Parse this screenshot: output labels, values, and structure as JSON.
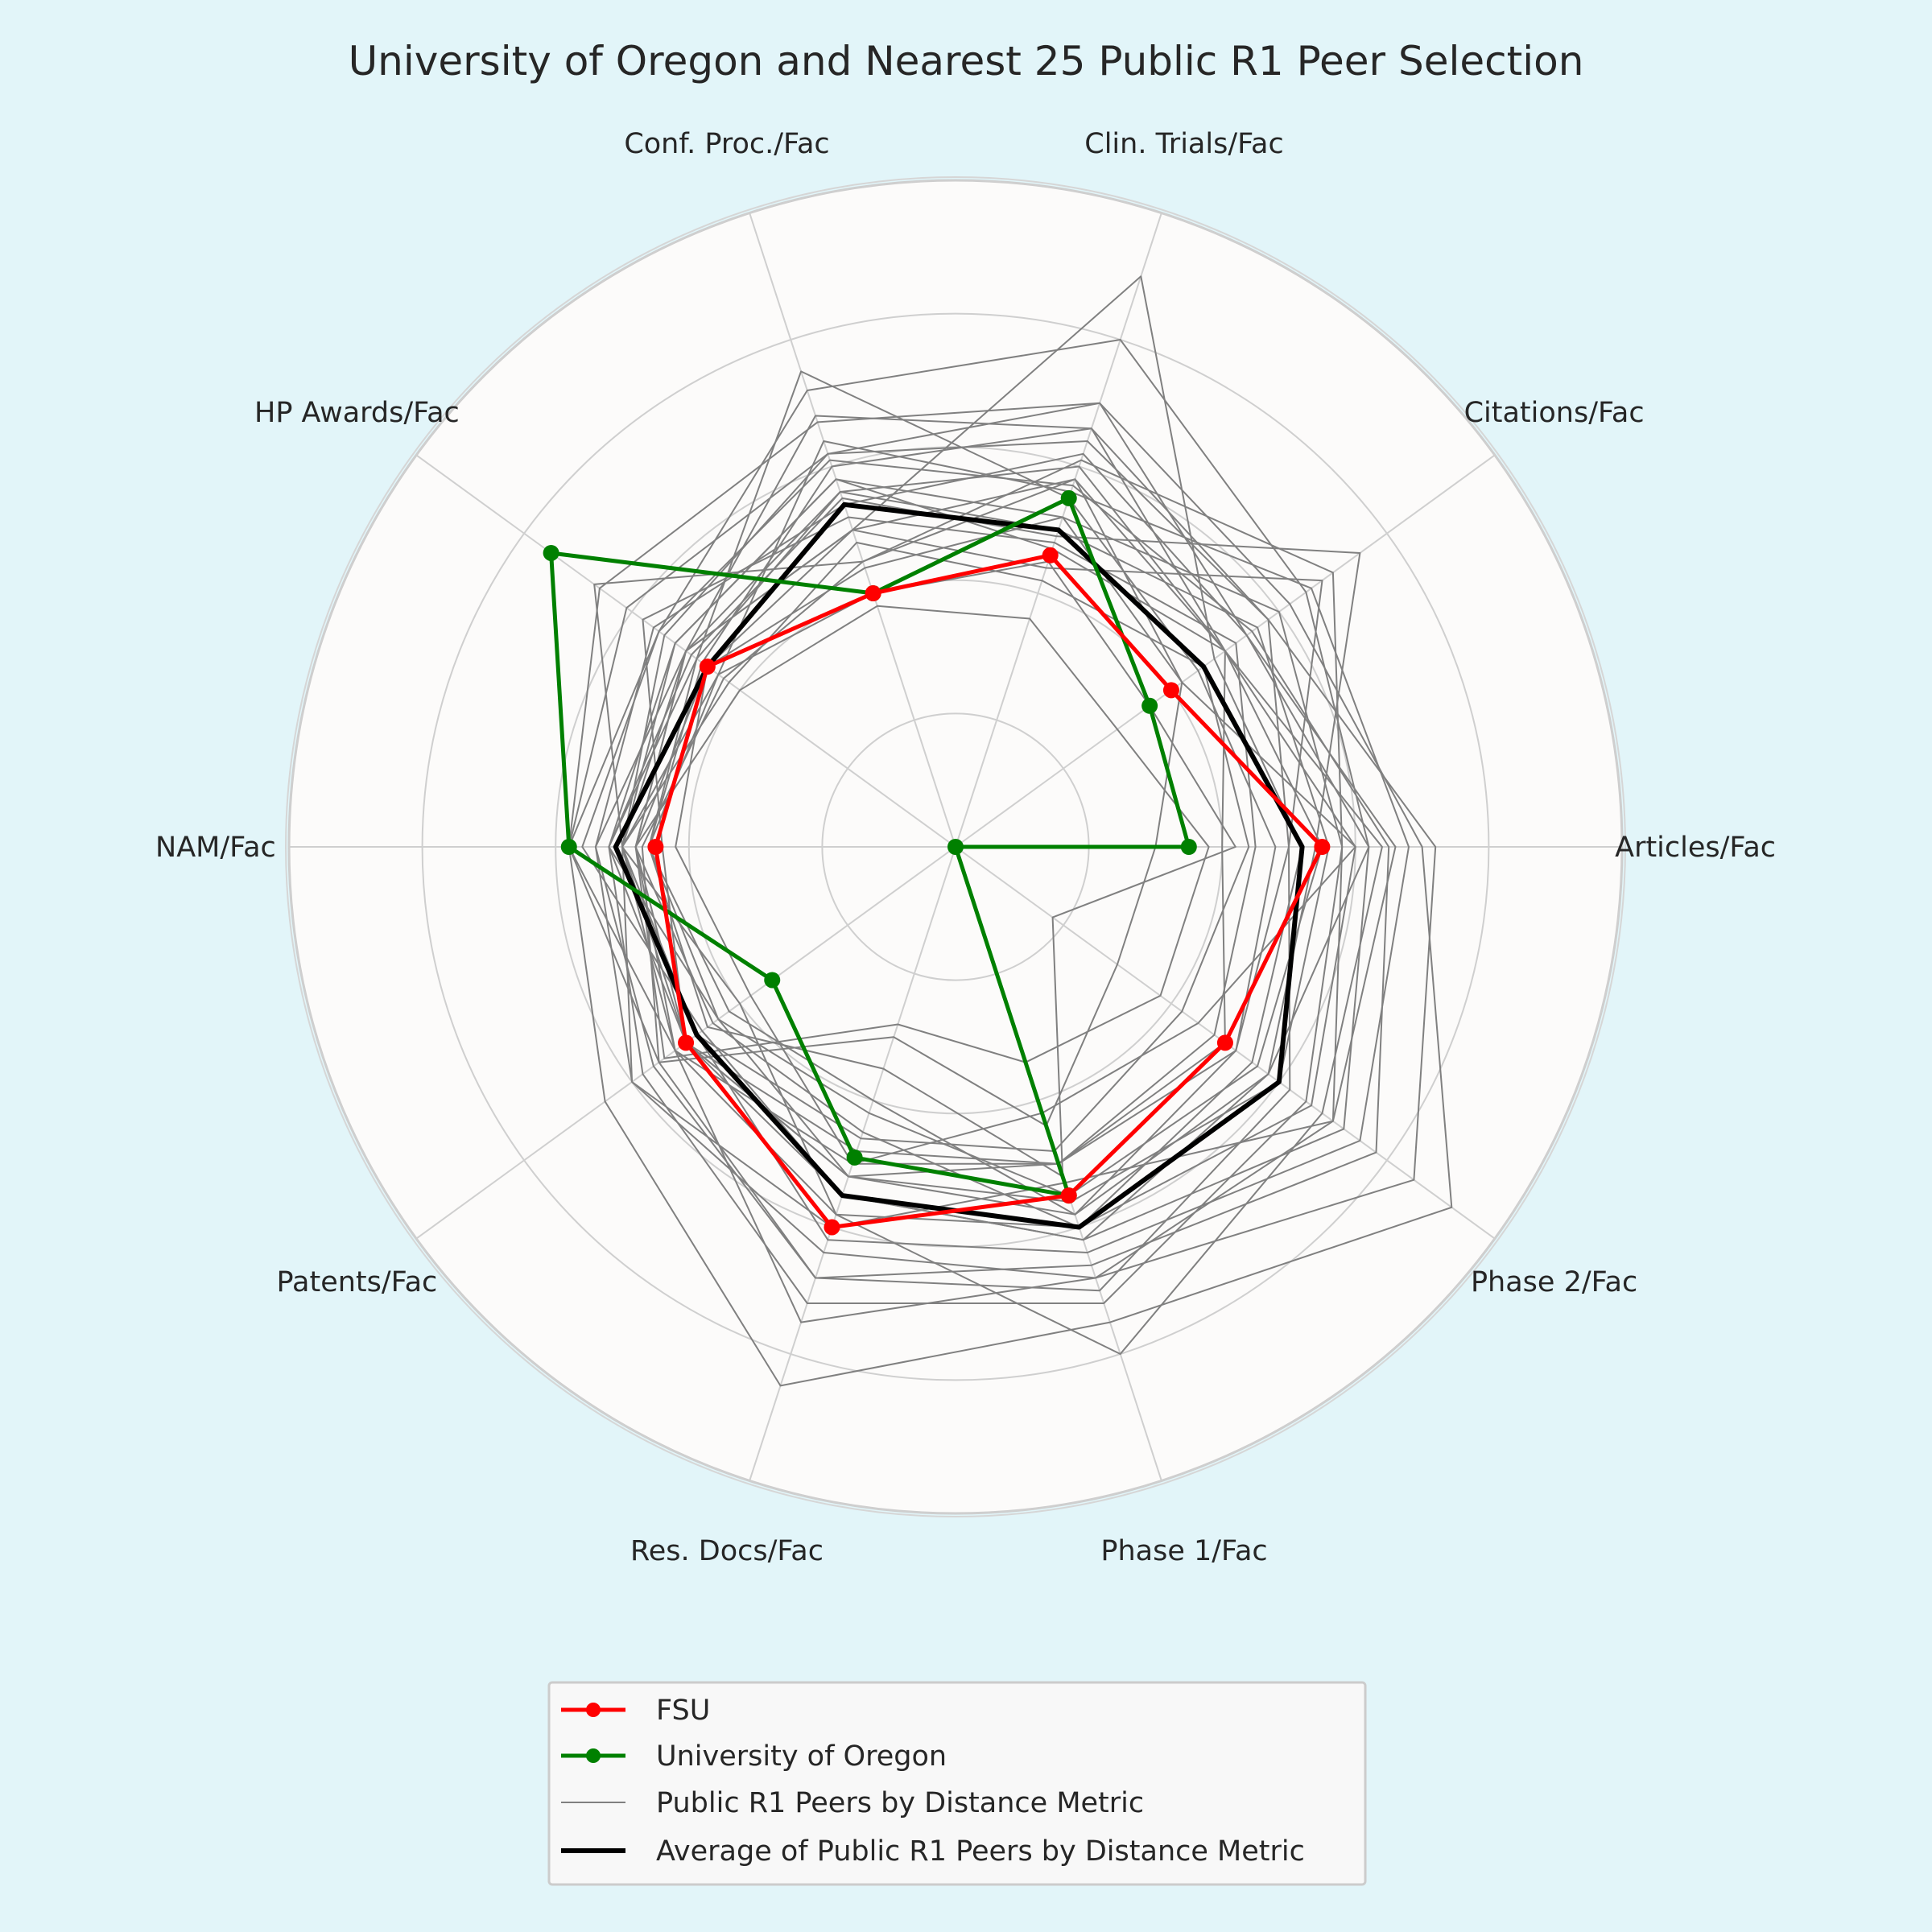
{
  "chart_data": {
    "type": "radar",
    "title": "University of Oregon and Nearest 25 Public R1 Peer Selection",
    "axes": [
      "Articles/Fac",
      "Citations/Fac",
      "Clin. Trials/Fac",
      "Conf. Proc./Fac",
      "HP Awards/Fac",
      "NAM/Fac",
      "Patents/Fac",
      "Res. Docs/Fac",
      "Phase 1/Fac",
      "Phase 2/Fac"
    ],
    "rlim": [
      0,
      1
    ],
    "grid": true,
    "gridlines": [
      0.2,
      0.4,
      0.6,
      0.8,
      1.0
    ],
    "legend": {
      "placement": "bottom-center"
    },
    "series": [
      {
        "name": "FSU",
        "color": "#ff0000",
        "role": "highlight",
        "markers": true,
        "values": [
          0.55,
          0.4,
          0.46,
          0.4,
          0.46,
          0.45,
          0.5,
          0.6,
          0.55,
          0.5
        ]
      },
      {
        "name": "University of Oregon",
        "color": "#008000",
        "role": "highlight",
        "markers": true,
        "values": [
          0.35,
          0.36,
          0.55,
          0.4,
          0.75,
          0.58,
          0.34,
          0.49,
          0.55,
          0.0
        ]
      },
      {
        "name": "Public R1 Peers by Distance Metric",
        "color": "#808080",
        "role": "peers",
        "lines": [
          [
            0.7,
            0.62,
            0.7,
            0.67,
            0.66,
            0.58,
            0.65,
            0.85,
            0.75,
            0.92
          ],
          [
            0.72,
            0.58,
            0.64,
            0.62,
            0.61,
            0.58,
            0.52,
            0.75,
            0.68,
            0.85
          ],
          [
            0.65,
            0.55,
            0.57,
            0.61,
            0.55,
            0.58,
            0.55,
            0.68,
            0.66,
            0.78
          ],
          [
            0.58,
            0.6,
            0.52,
            0.58,
            0.52,
            0.52,
            0.58,
            0.72,
            0.72,
            0.65
          ],
          [
            0.62,
            0.65,
            0.8,
            0.72,
            0.55,
            0.56,
            0.47,
            0.55,
            0.62,
            0.72
          ],
          [
            0.54,
            0.75,
            0.49,
            0.55,
            0.49,
            0.52,
            0.44,
            0.52,
            0.58,
            0.58
          ],
          [
            0.58,
            0.7,
            0.61,
            0.45,
            0.67,
            0.5,
            0.6,
            0.6,
            0.53,
            0.7
          ],
          [
            0.52,
            0.48,
            0.9,
            0.5,
            0.46,
            0.48,
            0.45,
            0.45,
            0.6,
            0.55
          ],
          [
            0.48,
            0.45,
            0.55,
            0.75,
            0.48,
            0.46,
            0.42,
            0.4,
            0.58,
            0.52
          ],
          [
            0.68,
            0.66,
            0.56,
            0.64,
            0.44,
            0.5,
            0.48,
            0.62,
            0.64,
            0.75
          ],
          [
            0.45,
            0.52,
            0.48,
            0.52,
            0.58,
            0.44,
            0.5,
            0.48,
            0.5,
            0.48
          ],
          [
            0.5,
            0.58,
            0.66,
            0.68,
            0.5,
            0.54,
            0.56,
            0.68,
            0.7,
            0.62
          ],
          [
            0.6,
            0.42,
            0.52,
            0.44,
            0.46,
            0.42,
            0.38,
            0.5,
            0.42,
            0.45
          ],
          [
            0.38,
            0.3,
            0.36,
            0.38,
            0.4,
            0.48,
            0.54,
            0.28,
            0.34,
            0.38
          ],
          [
            0.42,
            0.36,
            0.45,
            0.4,
            0.44,
            0.46,
            0.46,
            0.35,
            0.52,
            0.18
          ],
          [
            0.64,
            0.5,
            0.47,
            0.58,
            0.52,
            0.5,
            0.4,
            0.58,
            0.8,
            0.68
          ],
          [
            0.56,
            0.56,
            0.5,
            0.56,
            0.48,
            0.52,
            0.5,
            0.52,
            0.56,
            0.6
          ],
          [
            0.3,
            0.42,
            0.58,
            0.45,
            0.43,
            0.47,
            0.55,
            0.3,
            0.44,
            0.3
          ],
          [
            0.44,
            0.46,
            0.42,
            0.48,
            0.42,
            0.5,
            0.48,
            0.46,
            0.48,
            0.42
          ],
          [
            0.66,
            0.54,
            0.62,
            0.54,
            0.56,
            0.54,
            0.6,
            0.64,
            0.68,
            0.7
          ],
          [
            0.5,
            0.68,
            0.44,
            0.5,
            0.5,
            0.48,
            0.52,
            0.5,
            0.5,
            0.52
          ],
          [
            0.55,
            0.5,
            0.66,
            0.6,
            0.47,
            0.46,
            0.44,
            0.42,
            0.55,
            0.56
          ],
          [
            0.62,
            0.54,
            0.7,
            0.62,
            0.54,
            0.5,
            0.5,
            0.55,
            0.62,
            0.58
          ],
          [
            0.4,
            0.5,
            0.58,
            0.5,
            0.5,
            0.48,
            0.5,
            0.52,
            0.5,
            0.5
          ],
          [
            0.6,
            0.5,
            0.6,
            0.56,
            0.5,
            0.5,
            0.52,
            0.58,
            0.6,
            0.66
          ]
        ]
      },
      {
        "name": "Average of Public R1 Peers by Distance Metric",
        "color": "#000000",
        "role": "average",
        "values": [
          0.52,
          0.46,
          0.5,
          0.54,
          0.46,
          0.51,
          0.48,
          0.55,
          0.6,
          0.6
        ]
      }
    ]
  }
}
